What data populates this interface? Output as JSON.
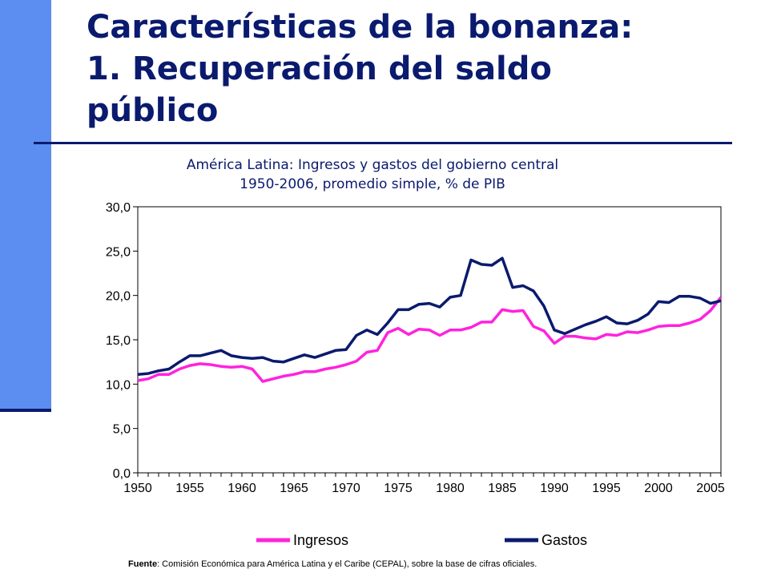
{
  "slide": {
    "title_line1": "Características de la bonanza:",
    "title_line2": "1. Recuperación del saldo",
    "title_line3": "público",
    "source_label": "Fuente",
    "source_text": ": Comisión Económica para América Latina y el Caribe (CEPAL), sobre la base de cifras oficiales.",
    "colors": {
      "accent_bar": "#5b8ef0",
      "title": "#0a1a6e"
    }
  },
  "chart_data": {
    "type": "line",
    "title": "América Latina: Ingresos y gastos del gobierno central",
    "subtitle": "1950-2006, promedio simple, % de PIB",
    "xlabel": "",
    "ylabel": "",
    "xlim": [
      1950,
      2006
    ],
    "ylim": [
      0,
      30
    ],
    "y_ticks": [
      "0,0",
      "5,0",
      "10,0",
      "15,0",
      "20,0",
      "25,0",
      "30,0"
    ],
    "y_tick_values": [
      0,
      5,
      10,
      15,
      20,
      25,
      30
    ],
    "x_ticks": [
      "1950",
      "1955",
      "1960",
      "1965",
      "1970",
      "1975",
      "1980",
      "1985",
      "1990",
      "1995",
      "2000",
      "2005"
    ],
    "x_tick_values": [
      1950,
      1955,
      1960,
      1965,
      1970,
      1975,
      1980,
      1985,
      1990,
      1995,
      2000,
      2005
    ],
    "grid": false,
    "legend": "bottom",
    "x": [
      1950,
      1951,
      1952,
      1953,
      1954,
      1955,
      1956,
      1957,
      1958,
      1959,
      1960,
      1961,
      1962,
      1963,
      1964,
      1965,
      1966,
      1967,
      1968,
      1969,
      1970,
      1971,
      1972,
      1973,
      1974,
      1975,
      1976,
      1977,
      1978,
      1979,
      1980,
      1981,
      1982,
      1983,
      1984,
      1985,
      1986,
      1987,
      1988,
      1989,
      1990,
      1991,
      1992,
      1993,
      1994,
      1995,
      1996,
      1997,
      1998,
      1999,
      2000,
      2001,
      2002,
      2003,
      2004,
      2005,
      2006
    ],
    "series": [
      {
        "name": "Ingresos",
        "color": "#ff22dd",
        "values": [
          10.4,
          10.6,
          11.1,
          11.1,
          11.7,
          12.1,
          12.3,
          12.2,
          12.0,
          11.9,
          12.0,
          11.7,
          10.3,
          10.6,
          10.9,
          11.1,
          11.4,
          11.4,
          11.7,
          11.9,
          12.2,
          12.6,
          13.6,
          13.8,
          15.8,
          16.3,
          15.6,
          16.2,
          16.1,
          15.5,
          16.1,
          16.1,
          16.4,
          17.0,
          17.0,
          18.4,
          18.2,
          18.3,
          16.5,
          16.0,
          14.6,
          15.4,
          15.4,
          15.2,
          15.1,
          15.6,
          15.5,
          15.9,
          15.8,
          16.1,
          16.5,
          16.6,
          16.6,
          16.9,
          17.3,
          18.3,
          19.8
        ]
      },
      {
        "name": "Gastos",
        "color": "#0a1a6e",
        "values": [
          11.1,
          11.2,
          11.5,
          11.7,
          12.5,
          13.2,
          13.2,
          13.5,
          13.8,
          13.2,
          13.0,
          12.9,
          13.0,
          12.6,
          12.5,
          12.9,
          13.3,
          13.0,
          13.4,
          13.8,
          13.9,
          15.5,
          16.1,
          15.6,
          16.9,
          18.4,
          18.4,
          19.0,
          19.1,
          18.7,
          19.8,
          20.0,
          24.0,
          23.5,
          23.4,
          24.2,
          20.9,
          21.1,
          20.5,
          18.8,
          16.1,
          15.7,
          16.2,
          16.7,
          17.1,
          17.6,
          16.9,
          16.8,
          17.2,
          17.9,
          19.3,
          19.2,
          19.9,
          19.9,
          19.7,
          19.1,
          19.4
        ]
      }
    ]
  }
}
